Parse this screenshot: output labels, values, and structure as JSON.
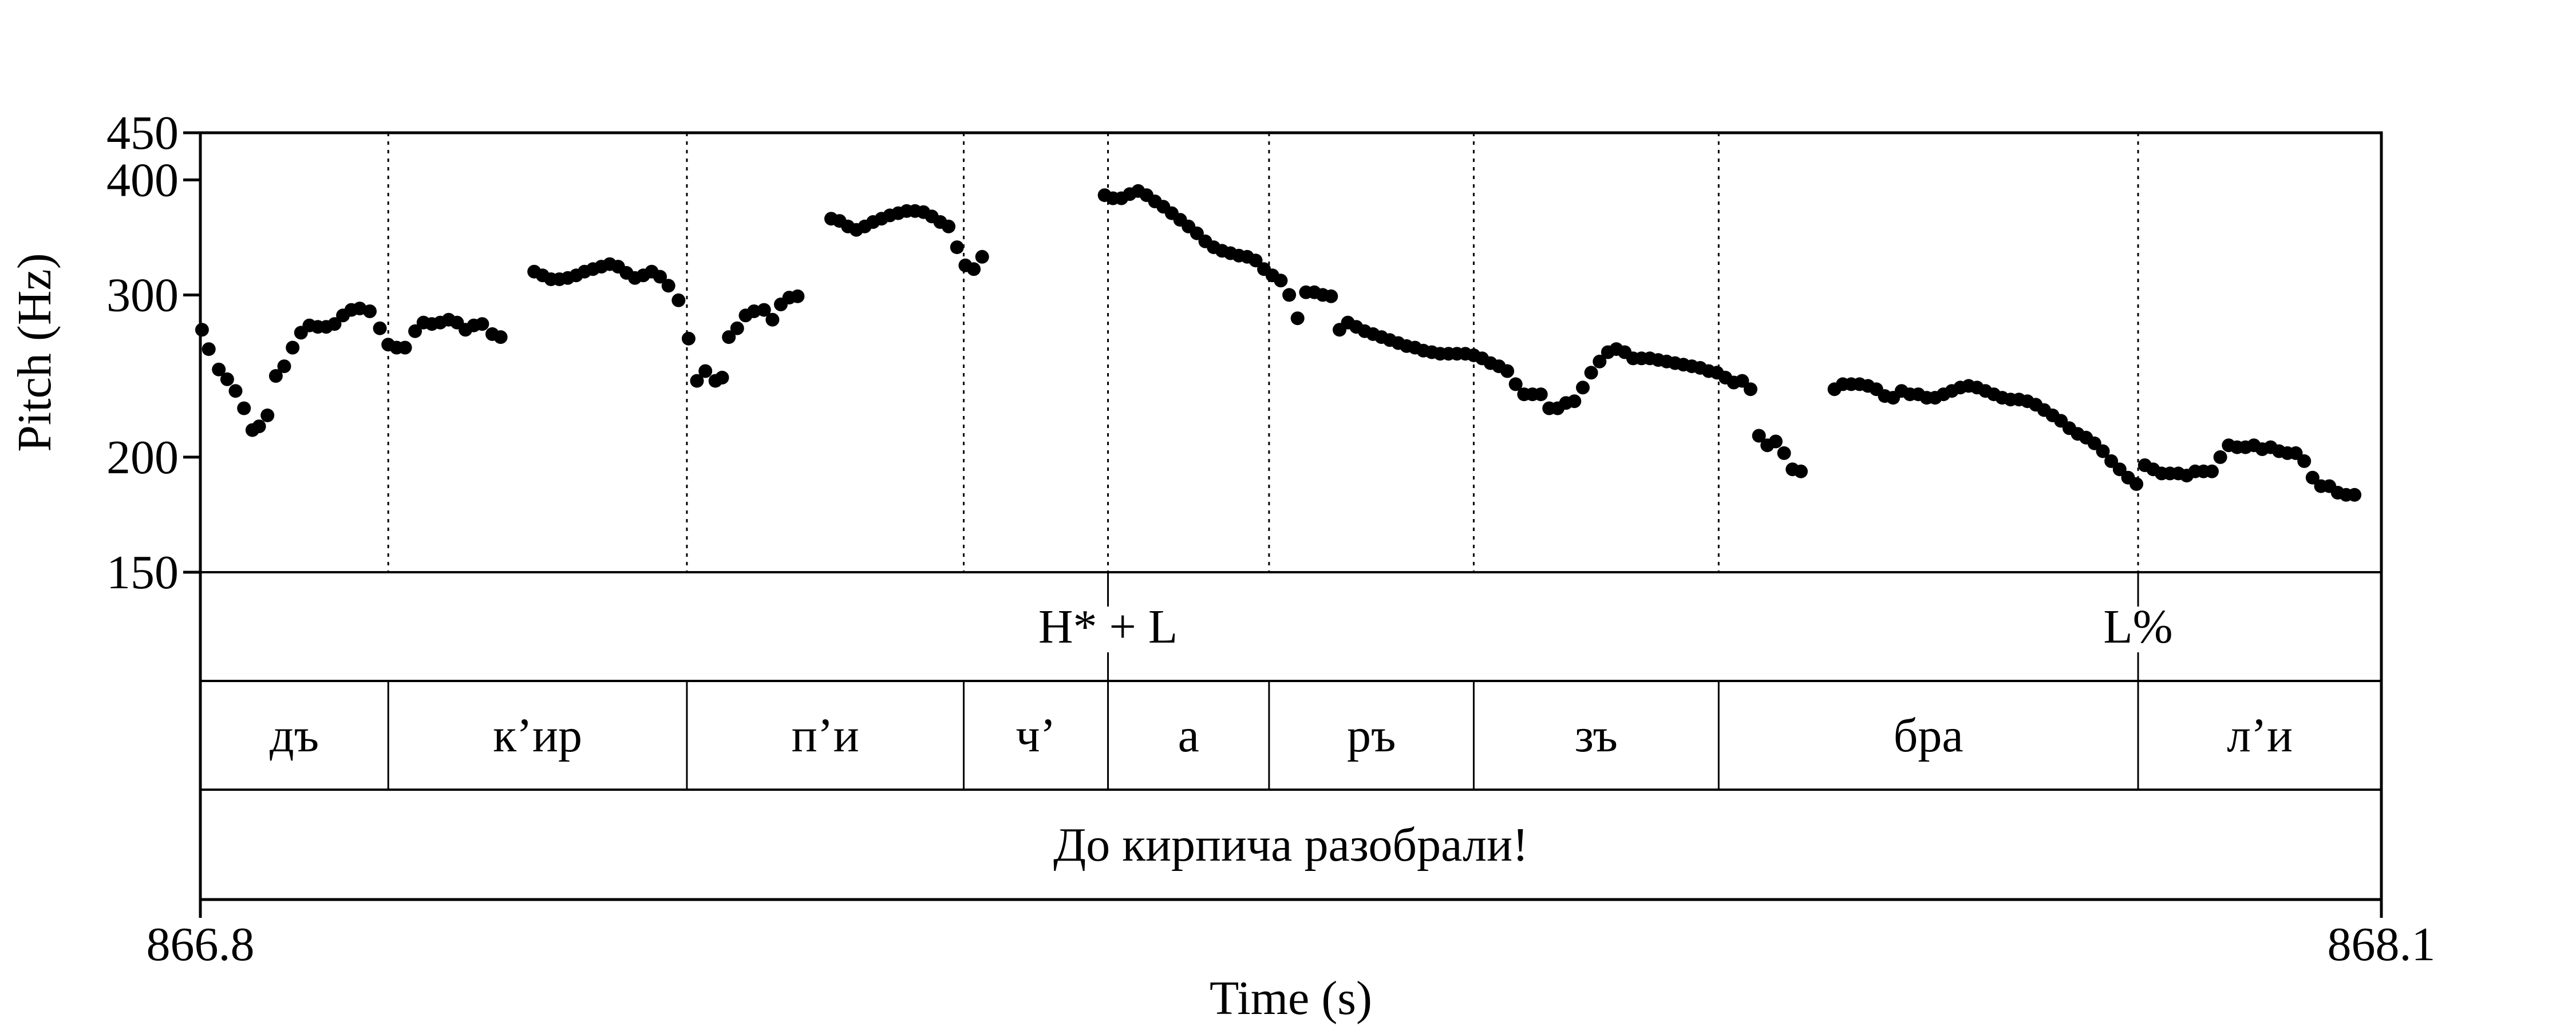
{
  "chart_data": {
    "type": "scatter",
    "title": "",
    "xlabel": "Time (s)",
    "ylabel": "Pitch (Hz)",
    "xlim": [
      866.8,
      868.1
    ],
    "ylim": [
      150,
      450
    ],
    "yscale": "log",
    "x_ticks": [
      "866.8",
      "868.1"
    ],
    "y_ticks": [
      150,
      200,
      300,
      400,
      450
    ],
    "y_tick_labels": [
      "150",
      "200",
      "300",
      "400",
      "450"
    ],
    "grid": false,
    "marker_color": "#000000",
    "boundaries": [
      866.912,
      867.09,
      867.255,
      867.341,
      867.437,
      867.559,
      867.705,
      867.955
    ],
    "tiers": {
      "tones": [
        {
          "time": 867.341,
          "label": "H* + L"
        },
        {
          "time": 867.955,
          "label": "L%"
        }
      ],
      "syllables": [
        {
          "start": 866.8,
          "end": 866.912,
          "label": "дъ"
        },
        {
          "start": 866.912,
          "end": 867.09,
          "label": "к’ир"
        },
        {
          "start": 867.09,
          "end": 867.255,
          "label": "п’и"
        },
        {
          "start": 867.255,
          "end": 867.341,
          "label": "ч’"
        },
        {
          "start": 867.341,
          "end": 867.437,
          "label": "а"
        },
        {
          "start": 867.437,
          "end": 867.559,
          "label": "ръ"
        },
        {
          "start": 867.559,
          "end": 867.705,
          "label": "зъ"
        },
        {
          "start": 867.705,
          "end": 867.955,
          "label": "бра"
        },
        {
          "start": 867.955,
          "end": 868.1,
          "label": "л’и"
        }
      ],
      "sentence": "До кирпича разобрали!"
    },
    "series": [
      {
        "points": [
          [
            866.801,
            275
          ],
          [
            866.805,
            262
          ],
          [
            866.811,
            249
          ],
          [
            866.816,
            243
          ],
          [
            866.821,
            236
          ],
          [
            866.826,
            226
          ],
          [
            866.831,
            214
          ],
          [
            866.835,
            216
          ],
          [
            866.84,
            222
          ],
          [
            866.845,
            245
          ],
          [
            866.85,
            251
          ],
          [
            866.855,
            263
          ],
          [
            866.86,
            273
          ],
          [
            866.865,
            278
          ],
          [
            866.87,
            277
          ],
          [
            866.875,
            277
          ],
          [
            866.88,
            279
          ],
          [
            866.885,
            285
          ],
          [
            866.89,
            289
          ],
          [
            866.895,
            290
          ],
          [
            866.901,
            288
          ],
          [
            866.907,
            276
          ],
          [
            866.912,
            265
          ],
          [
            866.917,
            263
          ],
          [
            866.922,
            263
          ],
          [
            866.928,
            274
          ],
          [
            866.933,
            280
          ],
          [
            866.938,
            279
          ],
          [
            866.943,
            280
          ],
          [
            866.948,
            282
          ],
          [
            866.953,
            280
          ],
          [
            866.958,
            275
          ],
          [
            866.963,
            278
          ],
          [
            866.968,
            279
          ],
          [
            866.974,
            272
          ],
          [
            866.979,
            270
          ],
          [
            866.999,
            318
          ],
          [
            867.004,
            315
          ],
          [
            867.009,
            312
          ],
          [
            867.014,
            312
          ],
          [
            867.019,
            313
          ],
          [
            867.024,
            315
          ],
          [
            867.029,
            318
          ],
          [
            867.034,
            320
          ],
          [
            867.039,
            322
          ],
          [
            867.044,
            324
          ],
          [
            867.049,
            322
          ],
          [
            867.054,
            317
          ],
          [
            867.059,
            313
          ],
          [
            867.064,
            315
          ],
          [
            867.069,
            318
          ],
          [
            867.074,
            314
          ],
          [
            867.079,
            307
          ],
          [
            867.085,
            296
          ],
          [
            867.091,
            269
          ],
          [
            867.096,
            242
          ],
          [
            867.101,
            248
          ],
          [
            867.107,
            242
          ],
          [
            867.111,
            244
          ],
          [
            867.115,
            270
          ],
          [
            867.12,
            276
          ],
          [
            867.125,
            285
          ],
          [
            867.13,
            288
          ],
          [
            867.136,
            289
          ],
          [
            867.141,
            282
          ],
          [
            867.146,
            293
          ],
          [
            867.151,
            298
          ],
          [
            867.156,
            299
          ],
          [
            867.176,
            363
          ],
          [
            867.181,
            361
          ],
          [
            867.186,
            356
          ],
          [
            867.191,
            353
          ],
          [
            867.196,
            356
          ],
          [
            867.201,
            360
          ],
          [
            867.206,
            363
          ],
          [
            867.211,
            366
          ],
          [
            867.216,
            368
          ],
          [
            867.221,
            370
          ],
          [
            867.226,
            370
          ],
          [
            867.231,
            369
          ],
          [
            867.236,
            365
          ],
          [
            867.241,
            360
          ],
          [
            867.246,
            356
          ],
          [
            867.251,
            338
          ],
          [
            867.256,
            323
          ],
          [
            867.261,
            320
          ],
          [
            867.266,
            330
          ],
          [
            867.339,
            385
          ],
          [
            867.344,
            382
          ],
          [
            867.349,
            382
          ],
          [
            867.354,
            386
          ],
          [
            867.359,
            389
          ],
          [
            867.364,
            385
          ],
          [
            867.369,
            379
          ],
          [
            867.374,
            374
          ],
          [
            867.379,
            368
          ],
          [
            867.384,
            362
          ],
          [
            867.389,
            356
          ],
          [
            867.394,
            350
          ],
          [
            867.399,
            343
          ],
          [
            867.404,
            338
          ],
          [
            867.409,
            335
          ],
          [
            867.414,
            333
          ],
          [
            867.419,
            331
          ],
          [
            867.424,
            330
          ],
          [
            867.429,
            327
          ],
          [
            867.434,
            320
          ],
          [
            867.439,
            315
          ],
          [
            867.444,
            311
          ],
          [
            867.449,
            300
          ],
          [
            867.454,
            283
          ],
          [
            867.459,
            302
          ],
          [
            867.464,
            302
          ],
          [
            867.469,
            300
          ],
          [
            867.474,
            299
          ],
          [
            867.479,
            275
          ],
          [
            867.484,
            280
          ],
          [
            867.489,
            277
          ],
          [
            867.494,
            274
          ],
          [
            867.499,
            272
          ],
          [
            867.504,
            270
          ],
          [
            867.509,
            268
          ],
          [
            867.514,
            266
          ],
          [
            867.519,
            264
          ],
          [
            867.524,
            263
          ],
          [
            867.529,
            261
          ],
          [
            867.534,
            260
          ],
          [
            867.539,
            259
          ],
          [
            867.544,
            259
          ],
          [
            867.549,
            259
          ],
          [
            867.554,
            259
          ],
          [
            867.559,
            258
          ],
          [
            867.564,
            256
          ],
          [
            867.569,
            253
          ],
          [
            867.574,
            251
          ],
          [
            867.579,
            248
          ],
          [
            867.584,
            240
          ],
          [
            867.589,
            234
          ],
          [
            867.594,
            234
          ],
          [
            867.599,
            234
          ],
          [
            867.604,
            226
          ],
          [
            867.609,
            226
          ],
          [
            867.614,
            229
          ],
          [
            867.619,
            230
          ],
          [
            867.624,
            238
          ],
          [
            867.629,
            247
          ],
          [
            867.634,
            254
          ],
          [
            867.639,
            260
          ],
          [
            867.644,
            262
          ],
          [
            867.649,
            260
          ],
          [
            867.654,
            256
          ],
          [
            867.659,
            256
          ],
          [
            867.664,
            256
          ],
          [
            867.669,
            255
          ],
          [
            867.674,
            254
          ],
          [
            867.679,
            253
          ],
          [
            867.684,
            252
          ],
          [
            867.689,
            251
          ],
          [
            867.694,
            250
          ],
          [
            867.699,
            248
          ],
          [
            867.704,
            247
          ],
          [
            867.709,
            244
          ],
          [
            867.714,
            241
          ],
          [
            867.719,
            242
          ],
          [
            867.724,
            237
          ],
          [
            867.729,
            211
          ],
          [
            867.734,
            206
          ],
          [
            867.739,
            208
          ],
          [
            867.744,
            202
          ],
          [
            867.749,
            194
          ],
          [
            867.754,
            193
          ],
          [
            867.774,
            237
          ],
          [
            867.779,
            240
          ],
          [
            867.784,
            240
          ],
          [
            867.789,
            240
          ],
          [
            867.794,
            239
          ],
          [
            867.799,
            237
          ],
          [
            867.804,
            233
          ],
          [
            867.809,
            232
          ],
          [
            867.814,
            236
          ],
          [
            867.819,
            234
          ],
          [
            867.824,
            234
          ],
          [
            867.829,
            232
          ],
          [
            867.834,
            232
          ],
          [
            867.839,
            234
          ],
          [
            867.844,
            236
          ],
          [
            867.849,
            238
          ],
          [
            867.854,
            239
          ],
          [
            867.859,
            238
          ],
          [
            867.864,
            236
          ],
          [
            867.869,
            234
          ],
          [
            867.874,
            232
          ],
          [
            867.879,
            231
          ],
          [
            867.884,
            231
          ],
          [
            867.889,
            230
          ],
          [
            867.894,
            228
          ],
          [
            867.899,
            225
          ],
          [
            867.904,
            222
          ],
          [
            867.909,
            219
          ],
          [
            867.914,
            215
          ],
          [
            867.919,
            212
          ],
          [
            867.924,
            210
          ],
          [
            867.929,
            207
          ],
          [
            867.934,
            203
          ],
          [
            867.939,
            198
          ],
          [
            867.944,
            194
          ],
          [
            867.949,
            190
          ],
          [
            867.954,
            187
          ],
          [
            867.959,
            196
          ],
          [
            867.964,
            194
          ],
          [
            867.969,
            192
          ],
          [
            867.974,
            192
          ],
          [
            867.979,
            192
          ],
          [
            867.984,
            191
          ],
          [
            867.989,
            193
          ],
          [
            867.994,
            193
          ],
          [
            867.999,
            193
          ],
          [
            868.004,
            200
          ],
          [
            868.009,
            206
          ],
          [
            868.014,
            205
          ],
          [
            868.019,
            205
          ],
          [
            868.024,
            206
          ],
          [
            868.029,
            204
          ],
          [
            868.034,
            205
          ],
          [
            868.039,
            203
          ],
          [
            868.044,
            202
          ],
          [
            868.049,
            202
          ],
          [
            868.054,
            198
          ],
          [
            868.059,
            190
          ],
          [
            868.064,
            186
          ],
          [
            868.069,
            186
          ],
          [
            868.074,
            183
          ],
          [
            868.079,
            182
          ],
          [
            868.084,
            182
          ]
        ]
      }
    ]
  }
}
